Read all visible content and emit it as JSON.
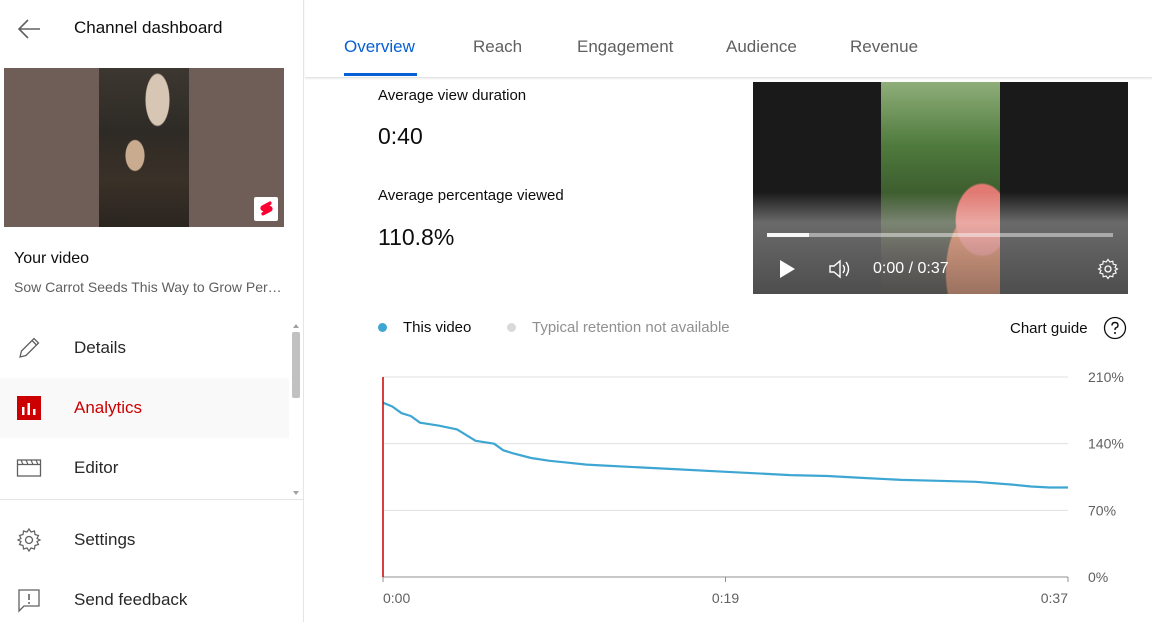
{
  "header": {
    "title": "Channel dashboard"
  },
  "video": {
    "section_label": "Your video",
    "title": "Sow Carrot Seeds This Way to Grow Perfect Carrots"
  },
  "nav": {
    "items": [
      {
        "label": "Details",
        "icon": "pencil-icon",
        "active": false
      },
      {
        "label": "Analytics",
        "icon": "analytics-icon",
        "active": true
      },
      {
        "label": "Editor",
        "icon": "clapperboard-icon",
        "active": false
      }
    ],
    "bottom": [
      {
        "label": "Settings",
        "icon": "gear-icon"
      },
      {
        "label": "Send feedback",
        "icon": "feedback-icon"
      }
    ]
  },
  "tabs": [
    {
      "label": "Overview",
      "active": true
    },
    {
      "label": "Reach",
      "active": false
    },
    {
      "label": "Engagement",
      "active": false
    },
    {
      "label": "Audience",
      "active": false
    },
    {
      "label": "Revenue",
      "active": false
    }
  ],
  "metrics": {
    "avg_view_duration": {
      "label": "Average view duration",
      "value": "0:40"
    },
    "avg_percentage": {
      "label": "Average percentage viewed",
      "value": "110.8%"
    }
  },
  "player": {
    "time": "0:00 / 0:37",
    "progress": 0.12
  },
  "legend": {
    "this_video": "This video",
    "typical": "Typical retention not available",
    "chart_guide": "Chart guide"
  },
  "colors": {
    "accent": "#065fd4",
    "active_red": "#cc0000",
    "series": "#3ea6d2",
    "playhead": "#cc0000"
  },
  "chart_data": {
    "type": "line",
    "title": "",
    "xlabel": "",
    "ylabel": "",
    "x_ticks": [
      "0:00",
      "0:19",
      "0:37"
    ],
    "y_ticks": [
      "0%",
      "70%",
      "140%",
      "210%"
    ],
    "xlim": [
      0,
      37
    ],
    "ylim": [
      0,
      210
    ],
    "grid": true,
    "series": [
      {
        "name": "This video",
        "x": [
          0,
          0.5,
          1,
          1.5,
          2,
          3,
          4,
          5,
          6,
          6.5,
          7,
          8,
          9,
          10,
          11,
          12,
          14,
          16,
          18,
          20,
          22,
          24,
          26,
          28,
          30,
          32,
          34,
          35,
          36,
          37
        ],
        "y": [
          183,
          179,
          172,
          169,
          162,
          159,
          155,
          143,
          140,
          133,
          130,
          125,
          122,
          120,
          118,
          117,
          115,
          113,
          111,
          109,
          107,
          106,
          104,
          102,
          101,
          100,
          97,
          95,
          94,
          94
        ]
      }
    ]
  }
}
